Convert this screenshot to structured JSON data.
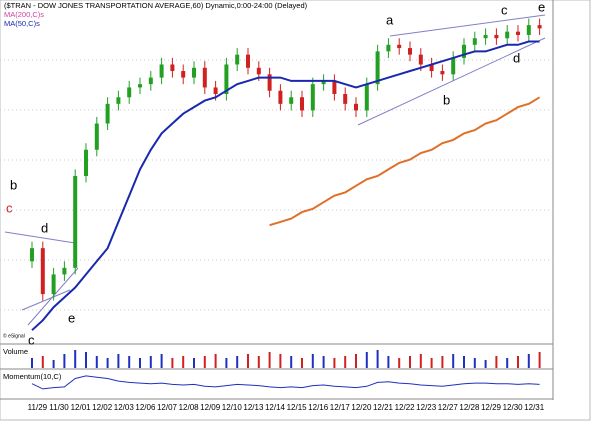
{
  "chart_data": {
    "type": "candlestick",
    "title": "($TRAN - DOW JONES TRANSPORTATION AVERAGE,60) Dynamic,0:00-24:00 (Delayed)",
    "categories": [
      "11/29",
      null,
      "11/30",
      null,
      "12/01",
      null,
      "12/02",
      null,
      "12/03",
      null,
      "12/06",
      null,
      "12/07",
      null,
      "12/08",
      null,
      "12/09",
      null,
      "12/10",
      null,
      "12/13",
      null,
      "12/14",
      null,
      "12/15",
      null,
      "12/16",
      null,
      "12/17",
      null,
      "12/20",
      null,
      "12/21",
      null,
      "12/22",
      null,
      "12/23",
      null,
      "12/27",
      null,
      "12/28",
      null,
      "12/29",
      null,
      "12/30",
      null,
      "12/31",
      null
    ],
    "open": [
      24,
      28,
      14,
      20,
      22,
      50,
      58,
      66,
      72,
      74,
      77,
      78,
      80,
      84,
      82,
      80,
      83,
      77,
      75,
      84,
      87,
      83,
      81,
      76,
      72,
      74,
      70,
      78,
      79,
      75,
      72,
      70,
      78,
      88,
      90,
      89,
      87,
      84,
      82,
      81,
      86,
      90,
      92,
      93,
      92,
      94,
      93,
      96
    ],
    "high": [
      30,
      30,
      22,
      24,
      52,
      60,
      68,
      74,
      76,
      79,
      80,
      82,
      86,
      86,
      84,
      85,
      85,
      79,
      86,
      89,
      89,
      85,
      83,
      78,
      76,
      76,
      80,
      81,
      81,
      77,
      74,
      80,
      90,
      92,
      92,
      91,
      89,
      86,
      84,
      88,
      92,
      94,
      95,
      95,
      96,
      96,
      98,
      98
    ],
    "low": [
      22,
      12,
      12,
      18,
      20,
      48,
      56,
      64,
      70,
      72,
      75,
      76,
      78,
      80,
      78,
      78,
      75,
      73,
      73,
      82,
      81,
      79,
      74,
      70,
      70,
      68,
      68,
      76,
      73,
      70,
      68,
      68,
      76,
      86,
      87,
      85,
      82,
      80,
      79,
      79,
      84,
      88,
      90,
      90,
      90,
      91,
      91,
      93
    ],
    "close": [
      28,
      14,
      20,
      22,
      50,
      58,
      66,
      72,
      74,
      77,
      78,
      80,
      84,
      82,
      80,
      83,
      77,
      75,
      84,
      87,
      83,
      81,
      76,
      72,
      74,
      70,
      78,
      79,
      75,
      72,
      70,
      78,
      88,
      90,
      89,
      87,
      84,
      82,
      81,
      86,
      90,
      92,
      93,
      92,
      94,
      93,
      96,
      95
    ],
    "up_color": "#22a022",
    "down_color": "#d02020",
    "ylim": [
      0,
      100
    ],
    "series": [
      {
        "name": "MA(200,C)s",
        "color": "#e07028",
        "label_color": "#d040a0",
        "values": [
          null,
          null,
          null,
          null,
          null,
          null,
          null,
          null,
          null,
          null,
          null,
          null,
          null,
          null,
          null,
          null,
          null,
          null,
          null,
          null,
          null,
          null,
          35,
          36,
          37,
          39,
          40,
          42,
          44,
          45,
          47,
          49,
          50,
          52,
          54,
          55,
          57,
          58,
          60,
          61,
          63,
          64,
          66,
          67,
          69,
          71,
          72,
          74
        ]
      },
      {
        "name": "MA(50,C)s",
        "color": "#1a28b0",
        "label_color": "#1a28b0",
        "values": [
          3,
          6,
          10,
          13,
          16,
          20,
          24,
          28,
          36,
          44,
          52,
          58,
          63,
          66,
          69,
          71,
          73,
          74,
          76,
          78,
          79,
          80,
          80,
          80,
          79,
          79,
          79,
          79,
          79,
          78,
          77,
          78,
          79,
          80,
          81,
          82,
          83,
          84,
          85,
          86,
          87,
          88,
          88,
          89,
          90,
          90,
          91,
          91
        ]
      }
    ],
    "volume": {
      "label": "Volume",
      "ylim": [
        0,
        10
      ],
      "up_color": "#2030c0",
      "down_color": "#d02020",
      "values": [
        5,
        6,
        4,
        7,
        9,
        8,
        6,
        5,
        7,
        6,
        5,
        6,
        7,
        5,
        6,
        5,
        6,
        7,
        5,
        6,
        7,
        6,
        8,
        7,
        6,
        5,
        7,
        6,
        5,
        6,
        7,
        8,
        9,
        6,
        5,
        6,
        7,
        5,
        6,
        7,
        6,
        5,
        4,
        6,
        5,
        6,
        7,
        8
      ]
    },
    "momentum": {
      "label": "Momentum(10,C)",
      "color": "#2030c0",
      "ylim": [
        -20,
        20
      ],
      "values": [
        2,
        -6,
        -4,
        -3,
        10,
        14,
        12,
        10,
        6,
        4,
        3,
        2,
        3,
        1,
        0,
        1,
        -2,
        -3,
        -1,
        1,
        0,
        -1,
        -3,
        -4,
        -3,
        -4,
        -1,
        0,
        -2,
        -3,
        -4,
        -2,
        4,
        5,
        3,
        2,
        0,
        -1,
        -2,
        0,
        2,
        3,
        3,
        2,
        2,
        1,
        2,
        1
      ]
    },
    "credit": "© eSignal",
    "annotations": [
      "a",
      "b",
      "c",
      "d",
      "e",
      "b",
      "c",
      "d",
      "e",
      "c"
    ]
  }
}
